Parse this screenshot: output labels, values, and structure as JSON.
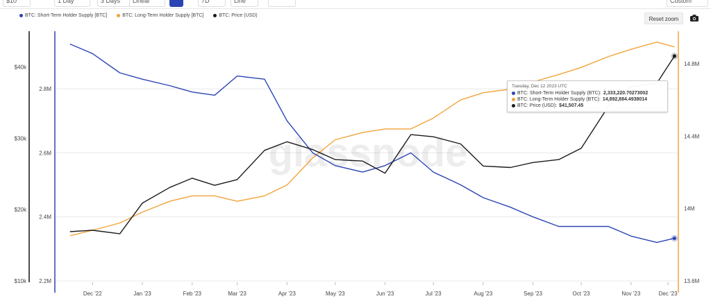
{
  "toolbar": {
    "items": [
      "$10",
      "1 Day",
      "3 Days",
      "Linear",
      "",
      "7D",
      "Line",
      "",
      "Custom"
    ]
  },
  "reset_zoom": "Reset zoom",
  "watermark": "glassnode",
  "tooltip": {
    "date": "Tuesday, Dec 12 2023 UTC",
    "rows": [
      {
        "label": "BTC: Short-Term Holder Supply (BTC):",
        "value": "2,333,220.70273002",
        "color": "#2b44b5"
      },
      {
        "label": "BTC: Long-Term Holder Supply (BTC):",
        "value": "14,892,884.4938014",
        "color": "#f2a33a"
      },
      {
        "label": "BTC: Price (USD):",
        "value": "$41,507.45",
        "color": "#1a1a1a"
      }
    ]
  },
  "colors": {
    "sth": "#2b44b5",
    "lth": "#f2a33a",
    "price": "#1a1a1a"
  },
  "chart_data": {
    "type": "line",
    "x": [
      "2022-12-01",
      "2022-12-15",
      "2023-01-01",
      "2023-01-15",
      "2023-02-01",
      "2023-02-15",
      "2023-03-01",
      "2023-03-15",
      "2023-04-01",
      "2023-04-15",
      "2023-05-01",
      "2023-05-15",
      "2023-06-01",
      "2023-06-15",
      "2023-07-01",
      "2023-07-15",
      "2023-08-01",
      "2023-08-15",
      "2023-09-01",
      "2023-09-15",
      "2023-10-01",
      "2023-10-15",
      "2023-11-01",
      "2023-11-15",
      "2023-12-01",
      "2023-12-12"
    ],
    "x_tick_labels": [
      "Dec '22",
      "Jan '23",
      "Feb '23",
      "Mar '23",
      "Apr '23",
      "May '23",
      "Jun '23",
      "Jul '23",
      "Aug '23",
      "Sep '23",
      "Oct '23",
      "Nov '23",
      "Dec '23"
    ],
    "legend_position": "top-left",
    "grid": true,
    "series": [
      {
        "name": "BTC: Short-Term Holder Supply [BTC]",
        "axis": "left-inner",
        "color": "#2b44b5",
        "values": [
          2.94,
          2.91,
          2.85,
          2.83,
          2.81,
          2.79,
          2.78,
          2.84,
          2.83,
          2.7,
          2.6,
          2.56,
          2.54,
          2.56,
          2.6,
          2.54,
          2.5,
          2.46,
          2.43,
          2.4,
          2.37,
          2.37,
          2.37,
          2.34,
          2.32,
          2.333
        ]
      },
      {
        "name": "BTC: Long-Term Holder Supply [BTC]",
        "axis": "right",
        "color": "#f2a33a",
        "values": [
          13.85,
          13.88,
          13.92,
          13.98,
          14.04,
          14.07,
          14.07,
          14.04,
          14.07,
          14.13,
          14.28,
          14.38,
          14.42,
          14.44,
          14.44,
          14.5,
          14.6,
          14.64,
          14.66,
          14.7,
          14.74,
          14.78,
          14.84,
          14.88,
          14.92,
          14.893
        ]
      },
      {
        "name": "BTC: Price (USD)",
        "axis": "left-outer",
        "color": "#1a1a1a",
        "values": [
          16900,
          17100,
          16600,
          20900,
          23100,
          24400,
          23400,
          24200,
          28300,
          29500,
          28400,
          27000,
          26800,
          25100,
          30500,
          30200,
          29200,
          26100,
          25900,
          26600,
          27000,
          28600,
          34500,
          37200,
          37700,
          41507
        ]
      }
    ],
    "axes": {
      "left_outer": {
        "label_unit": "USD",
        "ticks": [
          "$10k",
          "$20k",
          "$30k",
          "$40k"
        ],
        "range": [
          10000,
          45000
        ]
      },
      "left_inner": {
        "ticks": [
          "2.2M",
          "2.4M",
          "2.6M",
          "2.8M"
        ],
        "range": [
          2.2,
          2.98
        ]
      },
      "right": {
        "ticks": [
          "13.6M",
          "14M",
          "14.4M",
          "14.8M"
        ],
        "range": [
          13.6,
          14.98
        ]
      }
    }
  }
}
